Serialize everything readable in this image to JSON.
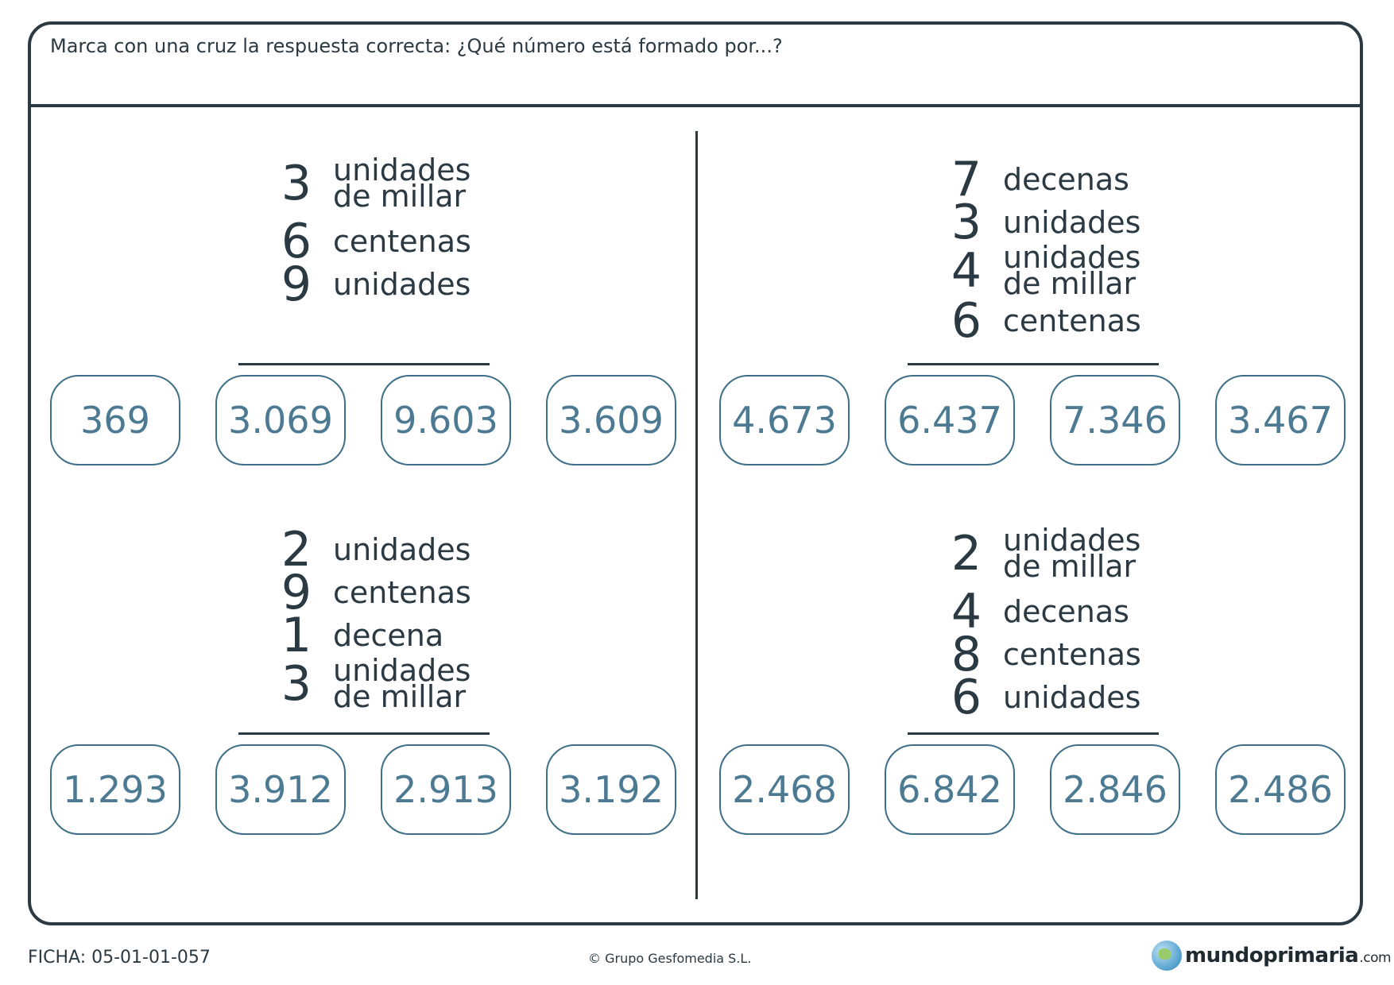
{
  "instruction": "Marca con una cruz la respuesta correcta: ¿Qué número está formado por...?",
  "problems": [
    {
      "items": [
        {
          "digit": "3",
          "label": "unidades\nde millar"
        },
        {
          "digit": "6",
          "label": "centenas"
        },
        {
          "digit": "9",
          "label": "unidades"
        }
      ],
      "options": [
        "369",
        "3.069",
        "9.603",
        "3.609"
      ]
    },
    {
      "items": [
        {
          "digit": "7",
          "label": "decenas"
        },
        {
          "digit": "3",
          "label": "unidades"
        },
        {
          "digit": "4",
          "label": "unidades\nde millar"
        },
        {
          "digit": "6",
          "label": "centenas"
        }
      ],
      "options": [
        "4.673",
        "6.437",
        "7.346",
        "3.467"
      ]
    },
    {
      "items": [
        {
          "digit": "2",
          "label": "unidades"
        },
        {
          "digit": "9",
          "label": "centenas"
        },
        {
          "digit": "1",
          "label": "decena"
        },
        {
          "digit": "3",
          "label": "unidades\nde millar"
        }
      ],
      "options": [
        "1.293",
        "3.912",
        "2.913",
        "3.192"
      ]
    },
    {
      "items": [
        {
          "digit": "2",
          "label": "unidades\nde millar"
        },
        {
          "digit": "4",
          "label": "decenas"
        },
        {
          "digit": "8",
          "label": "centenas"
        },
        {
          "digit": "6",
          "label": "unidades"
        }
      ],
      "options": [
        "2.468",
        "6.842",
        "2.846",
        "2.486"
      ]
    }
  ],
  "footer": {
    "ficha": "FICHA: 05-01-01-057",
    "copyright": "© Grupo Gesfomedia S.L.",
    "logo_name": "mundoprimaria",
    "logo_domain": ".com"
  },
  "icons": {
    "logo": "globe-icon"
  },
  "colors": {
    "ink": "#2b3942",
    "option_border": "#3f6f88",
    "option_text": "#4c7a93"
  }
}
